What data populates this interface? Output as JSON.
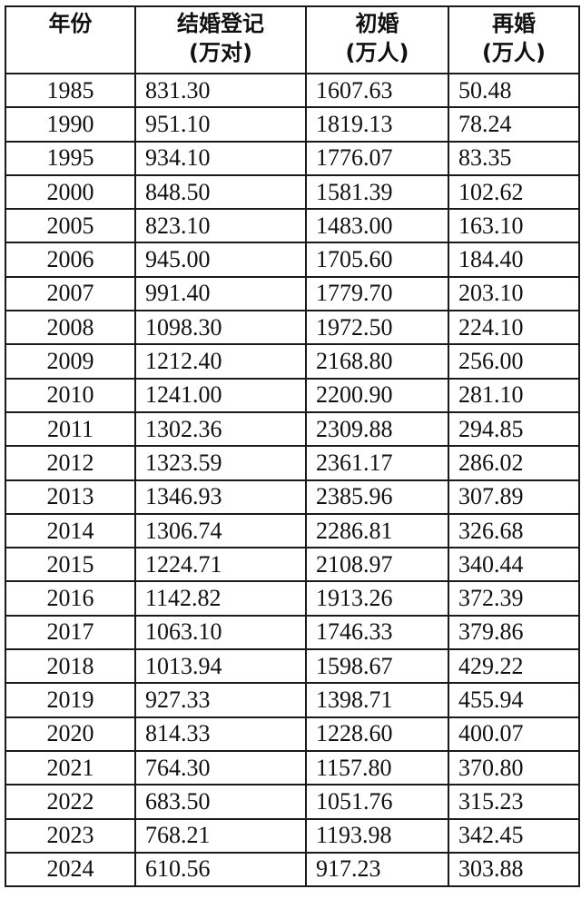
{
  "table": {
    "headers": [
      {
        "line1": "年份",
        "line2": ""
      },
      {
        "line1": "结婚登记",
        "line2": "(万对)"
      },
      {
        "line1": "初婚",
        "line2": "(万人)"
      },
      {
        "line1": "再婚",
        "line2": "(万人)"
      }
    ],
    "rows": [
      [
        "1985",
        "831.30",
        "1607.63",
        "50.48"
      ],
      [
        "1990",
        "951.10",
        "1819.13",
        "78.24"
      ],
      [
        "1995",
        "934.10",
        "1776.07",
        "83.35"
      ],
      [
        "2000",
        "848.50",
        "1581.39",
        "102.62"
      ],
      [
        "2005",
        "823.10",
        "1483.00",
        "163.10"
      ],
      [
        "2006",
        "945.00",
        "1705.60",
        "184.40"
      ],
      [
        "2007",
        "991.40",
        "1779.70",
        "203.10"
      ],
      [
        "2008",
        "1098.30",
        "1972.50",
        "224.10"
      ],
      [
        "2009",
        "1212.40",
        "2168.80",
        "256.00"
      ],
      [
        "2010",
        "1241.00",
        "2200.90",
        "281.10"
      ],
      [
        "2011",
        "1302.36",
        "2309.88",
        "294.85"
      ],
      [
        "2012",
        "1323.59",
        "2361.17",
        "286.02"
      ],
      [
        "2013",
        "1346.93",
        "2385.96",
        "307.89"
      ],
      [
        "2014",
        "1306.74",
        "2286.81",
        "326.68"
      ],
      [
        "2015",
        "1224.71",
        "2108.97",
        "340.44"
      ],
      [
        "2016",
        "1142.82",
        "1913.26",
        "372.39"
      ],
      [
        "2017",
        "1063.10",
        "1746.33",
        "379.86"
      ],
      [
        "2018",
        "1013.94",
        "1598.67",
        "429.22"
      ],
      [
        "2019",
        "927.33",
        "1398.71",
        "455.94"
      ],
      [
        "2020",
        "814.33",
        "1228.60",
        "400.07"
      ],
      [
        "2021",
        "764.30",
        "1157.80",
        "370.80"
      ],
      [
        "2022",
        "683.50",
        "1051.76",
        "315.23"
      ],
      [
        "2023",
        "768.21",
        "1193.98",
        "342.45"
      ],
      [
        "2024",
        "610.56",
        "917.23",
        "303.88"
      ]
    ]
  }
}
